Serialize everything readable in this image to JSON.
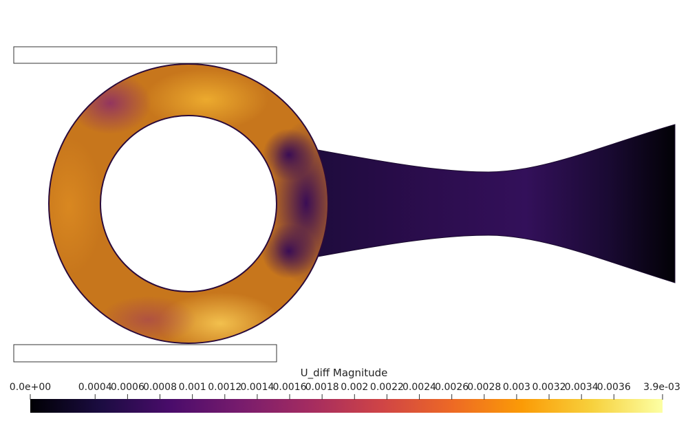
{
  "figure": {
    "field_name": "U_diff Magnitude"
  },
  "colorbar": {
    "title": "U_diff Magnitude",
    "range": [
      0.0,
      0.0039
    ],
    "colormap": "inferno",
    "ticks": [
      {
        "value": 0.0,
        "label": "0.0e+00"
      },
      {
        "value": 0.0004,
        "label": "0.0004"
      },
      {
        "value": 0.0006,
        "label": "0.0006"
      },
      {
        "value": 0.0008,
        "label": "0.0008"
      },
      {
        "value": 0.001,
        "label": "0.001"
      },
      {
        "value": 0.0012,
        "label": "0.0012"
      },
      {
        "value": 0.0014,
        "label": "0.0014"
      },
      {
        "value": 0.0016,
        "label": "0.0016"
      },
      {
        "value": 0.0018,
        "label": "0.0018"
      },
      {
        "value": 0.002,
        "label": "0.002"
      },
      {
        "value": 0.0022,
        "label": "0.0022"
      },
      {
        "value": 0.0024,
        "label": "0.0024"
      },
      {
        "value": 0.0026,
        "label": "0.0026"
      },
      {
        "value": 0.0028,
        "label": "0.0028"
      },
      {
        "value": 0.003,
        "label": "0.003"
      },
      {
        "value": 0.0032,
        "label": "0.0032"
      },
      {
        "value": 0.0034,
        "label": "0.0034"
      },
      {
        "value": 0.0036,
        "label": "0.0036"
      },
      {
        "value": 0.0039,
        "label": "3.9e-03"
      }
    ],
    "stops": [
      "#000004",
      "#1b0c41",
      "#4a0c6b",
      "#781c6d",
      "#a52c60",
      "#cf4446",
      "#ed6925",
      "#fb9b06",
      "#f7d13d",
      "#fcffa4"
    ]
  },
  "colors": {
    "ring_base": "#c7761c",
    "ring_outline": "#2a0a3a",
    "channel_dark": "#1a0a35",
    "outline_boxes": "#333333"
  }
}
